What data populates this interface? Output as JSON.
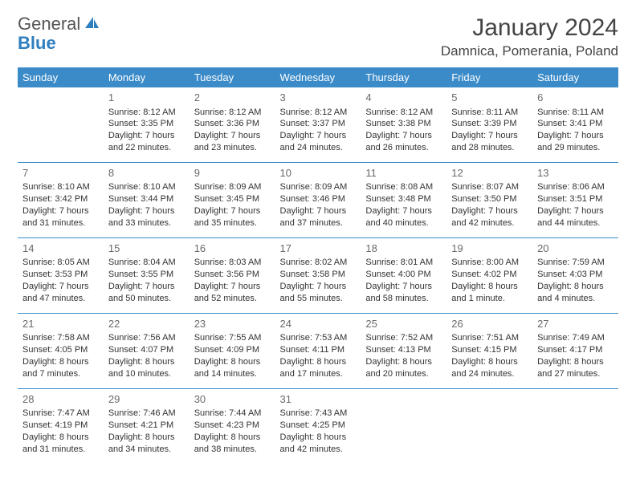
{
  "logo": {
    "line1": "General",
    "line2": "Blue"
  },
  "title": "January 2024",
  "location": "Damnica, Pomerania, Poland",
  "header_bg": "#3b8bc9",
  "border_color": "#3b8bc9",
  "day_headers": [
    "Sunday",
    "Monday",
    "Tuesday",
    "Wednesday",
    "Thursday",
    "Friday",
    "Saturday"
  ],
  "weeks": [
    [
      null,
      {
        "n": "1",
        "sr": "Sunrise: 8:12 AM",
        "ss": "Sunset: 3:35 PM",
        "d1": "Daylight: 7 hours",
        "d2": "and 22 minutes."
      },
      {
        "n": "2",
        "sr": "Sunrise: 8:12 AM",
        "ss": "Sunset: 3:36 PM",
        "d1": "Daylight: 7 hours",
        "d2": "and 23 minutes."
      },
      {
        "n": "3",
        "sr": "Sunrise: 8:12 AM",
        "ss": "Sunset: 3:37 PM",
        "d1": "Daylight: 7 hours",
        "d2": "and 24 minutes."
      },
      {
        "n": "4",
        "sr": "Sunrise: 8:12 AM",
        "ss": "Sunset: 3:38 PM",
        "d1": "Daylight: 7 hours",
        "d2": "and 26 minutes."
      },
      {
        "n": "5",
        "sr": "Sunrise: 8:11 AM",
        "ss": "Sunset: 3:39 PM",
        "d1": "Daylight: 7 hours",
        "d2": "and 28 minutes."
      },
      {
        "n": "6",
        "sr": "Sunrise: 8:11 AM",
        "ss": "Sunset: 3:41 PM",
        "d1": "Daylight: 7 hours",
        "d2": "and 29 minutes."
      }
    ],
    [
      {
        "n": "7",
        "sr": "Sunrise: 8:10 AM",
        "ss": "Sunset: 3:42 PM",
        "d1": "Daylight: 7 hours",
        "d2": "and 31 minutes."
      },
      {
        "n": "8",
        "sr": "Sunrise: 8:10 AM",
        "ss": "Sunset: 3:44 PM",
        "d1": "Daylight: 7 hours",
        "d2": "and 33 minutes."
      },
      {
        "n": "9",
        "sr": "Sunrise: 8:09 AM",
        "ss": "Sunset: 3:45 PM",
        "d1": "Daylight: 7 hours",
        "d2": "and 35 minutes."
      },
      {
        "n": "10",
        "sr": "Sunrise: 8:09 AM",
        "ss": "Sunset: 3:46 PM",
        "d1": "Daylight: 7 hours",
        "d2": "and 37 minutes."
      },
      {
        "n": "11",
        "sr": "Sunrise: 8:08 AM",
        "ss": "Sunset: 3:48 PM",
        "d1": "Daylight: 7 hours",
        "d2": "and 40 minutes."
      },
      {
        "n": "12",
        "sr": "Sunrise: 8:07 AM",
        "ss": "Sunset: 3:50 PM",
        "d1": "Daylight: 7 hours",
        "d2": "and 42 minutes."
      },
      {
        "n": "13",
        "sr": "Sunrise: 8:06 AM",
        "ss": "Sunset: 3:51 PM",
        "d1": "Daylight: 7 hours",
        "d2": "and 44 minutes."
      }
    ],
    [
      {
        "n": "14",
        "sr": "Sunrise: 8:05 AM",
        "ss": "Sunset: 3:53 PM",
        "d1": "Daylight: 7 hours",
        "d2": "and 47 minutes."
      },
      {
        "n": "15",
        "sr": "Sunrise: 8:04 AM",
        "ss": "Sunset: 3:55 PM",
        "d1": "Daylight: 7 hours",
        "d2": "and 50 minutes."
      },
      {
        "n": "16",
        "sr": "Sunrise: 8:03 AM",
        "ss": "Sunset: 3:56 PM",
        "d1": "Daylight: 7 hours",
        "d2": "and 52 minutes."
      },
      {
        "n": "17",
        "sr": "Sunrise: 8:02 AM",
        "ss": "Sunset: 3:58 PM",
        "d1": "Daylight: 7 hours",
        "d2": "and 55 minutes."
      },
      {
        "n": "18",
        "sr": "Sunrise: 8:01 AM",
        "ss": "Sunset: 4:00 PM",
        "d1": "Daylight: 7 hours",
        "d2": "and 58 minutes."
      },
      {
        "n": "19",
        "sr": "Sunrise: 8:00 AM",
        "ss": "Sunset: 4:02 PM",
        "d1": "Daylight: 8 hours",
        "d2": "and 1 minute."
      },
      {
        "n": "20",
        "sr": "Sunrise: 7:59 AM",
        "ss": "Sunset: 4:03 PM",
        "d1": "Daylight: 8 hours",
        "d2": "and 4 minutes."
      }
    ],
    [
      {
        "n": "21",
        "sr": "Sunrise: 7:58 AM",
        "ss": "Sunset: 4:05 PM",
        "d1": "Daylight: 8 hours",
        "d2": "and 7 minutes."
      },
      {
        "n": "22",
        "sr": "Sunrise: 7:56 AM",
        "ss": "Sunset: 4:07 PM",
        "d1": "Daylight: 8 hours",
        "d2": "and 10 minutes."
      },
      {
        "n": "23",
        "sr": "Sunrise: 7:55 AM",
        "ss": "Sunset: 4:09 PM",
        "d1": "Daylight: 8 hours",
        "d2": "and 14 minutes."
      },
      {
        "n": "24",
        "sr": "Sunrise: 7:53 AM",
        "ss": "Sunset: 4:11 PM",
        "d1": "Daylight: 8 hours",
        "d2": "and 17 minutes."
      },
      {
        "n": "25",
        "sr": "Sunrise: 7:52 AM",
        "ss": "Sunset: 4:13 PM",
        "d1": "Daylight: 8 hours",
        "d2": "and 20 minutes."
      },
      {
        "n": "26",
        "sr": "Sunrise: 7:51 AM",
        "ss": "Sunset: 4:15 PM",
        "d1": "Daylight: 8 hours",
        "d2": "and 24 minutes."
      },
      {
        "n": "27",
        "sr": "Sunrise: 7:49 AM",
        "ss": "Sunset: 4:17 PM",
        "d1": "Daylight: 8 hours",
        "d2": "and 27 minutes."
      }
    ],
    [
      {
        "n": "28",
        "sr": "Sunrise: 7:47 AM",
        "ss": "Sunset: 4:19 PM",
        "d1": "Daylight: 8 hours",
        "d2": "and 31 minutes."
      },
      {
        "n": "29",
        "sr": "Sunrise: 7:46 AM",
        "ss": "Sunset: 4:21 PM",
        "d1": "Daylight: 8 hours",
        "d2": "and 34 minutes."
      },
      {
        "n": "30",
        "sr": "Sunrise: 7:44 AM",
        "ss": "Sunset: 4:23 PM",
        "d1": "Daylight: 8 hours",
        "d2": "and 38 minutes."
      },
      {
        "n": "31",
        "sr": "Sunrise: 7:43 AM",
        "ss": "Sunset: 4:25 PM",
        "d1": "Daylight: 8 hours",
        "d2": "and 42 minutes."
      },
      null,
      null,
      null
    ]
  ]
}
